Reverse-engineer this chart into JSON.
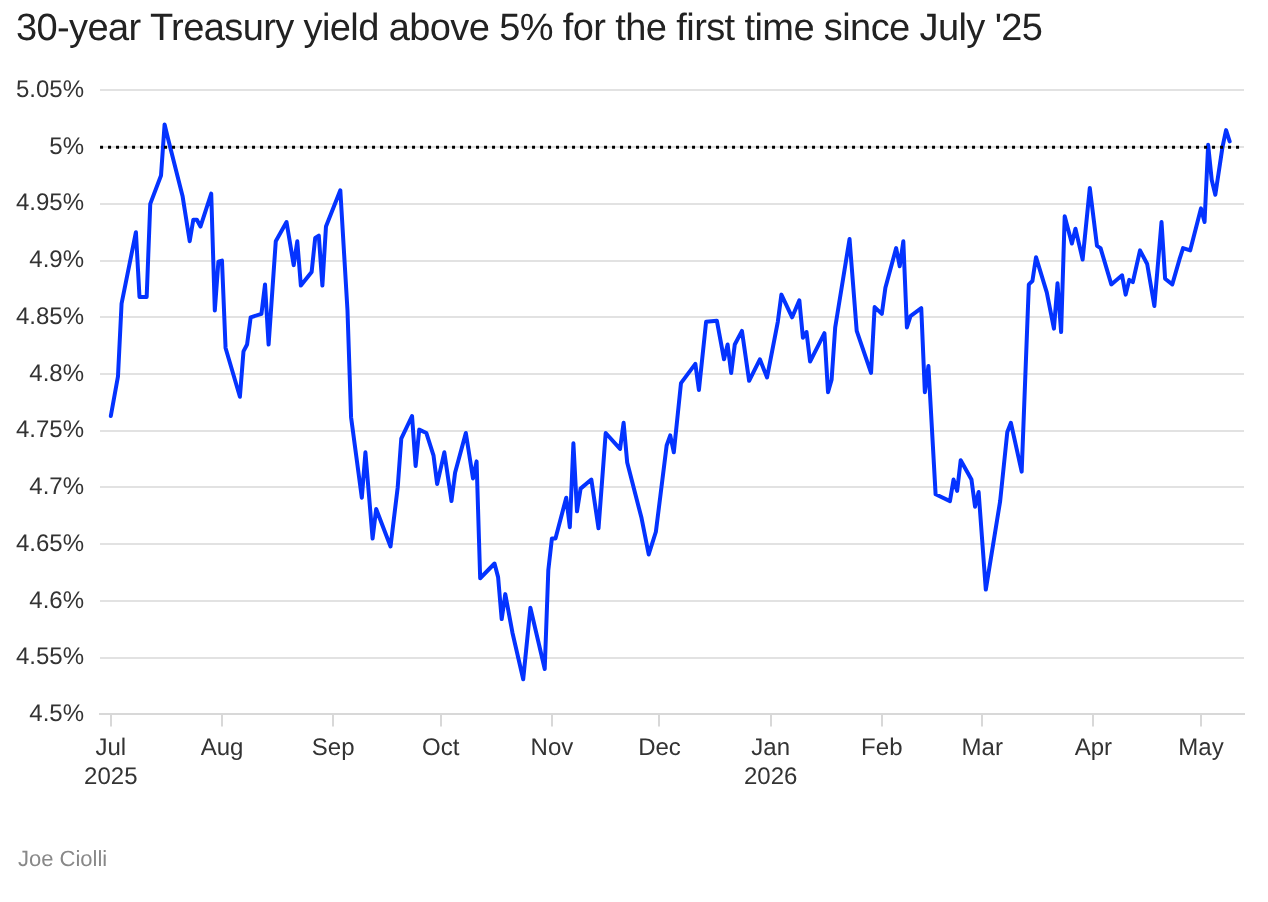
{
  "chart_data": {
    "type": "line",
    "title": "30-year Treasury yield above 5% for the first time since July '25",
    "x": [
      "2025-07-01",
      "2025-07-03",
      "2025-07-04",
      "2025-07-08",
      "2025-07-09",
      "2025-07-11",
      "2025-07-12",
      "2025-07-15",
      "2025-07-16",
      "2025-07-17",
      "2025-07-21",
      "2025-07-23",
      "2025-07-24",
      "2025-07-25",
      "2025-07-26",
      "2025-07-29",
      "2025-07-30",
      "2025-07-31",
      "2025-08-01",
      "2025-08-02",
      "2025-08-06",
      "2025-08-07",
      "2025-08-08",
      "2025-08-09",
      "2025-08-12",
      "2025-08-13",
      "2025-08-14",
      "2025-08-16",
      "2025-08-19",
      "2025-08-21",
      "2025-08-22",
      "2025-08-23",
      "2025-08-26",
      "2025-08-27",
      "2025-08-28",
      "2025-08-29",
      "2025-08-30",
      "2025-09-03",
      "2025-09-05",
      "2025-09-06",
      "2025-09-09",
      "2025-09-10",
      "2025-09-12",
      "2025-09-13",
      "2025-09-17",
      "2025-09-19",
      "2025-09-20",
      "2025-09-23",
      "2025-09-24",
      "2025-09-25",
      "2025-09-27",
      "2025-09-29",
      "2025-09-30",
      "2025-10-02",
      "2025-10-04",
      "2025-10-05",
      "2025-10-08",
      "2025-10-10",
      "2025-10-11",
      "2025-10-12",
      "2025-10-16",
      "2025-10-17",
      "2025-10-18",
      "2025-10-19",
      "2025-10-21",
      "2025-10-24",
      "2025-10-26",
      "2025-10-30",
      "2025-10-31",
      "2025-11-01",
      "2025-11-02",
      "2025-11-05",
      "2025-11-06",
      "2025-11-07",
      "2025-11-08",
      "2025-11-09",
      "2025-11-12",
      "2025-11-14",
      "2025-11-16",
      "2025-11-20",
      "2025-11-21",
      "2025-11-22",
      "2025-11-26",
      "2025-11-28",
      "2025-11-30",
      "2025-12-03",
      "2025-12-04",
      "2025-12-05",
      "2025-12-07",
      "2025-12-11",
      "2025-12-12",
      "2025-12-14",
      "2025-12-17",
      "2025-12-19",
      "2025-12-20",
      "2025-12-21",
      "2025-12-22",
      "2025-12-24",
      "2025-12-26",
      "2025-12-29",
      "2025-12-31",
      "2026-01-03",
      "2026-01-04",
      "2026-01-07",
      "2026-01-09",
      "2026-01-10",
      "2026-01-11",
      "2026-01-12",
      "2026-01-16",
      "2026-01-17",
      "2026-01-18",
      "2026-01-19",
      "2026-01-23",
      "2026-01-25",
      "2026-01-29",
      "2026-01-30",
      "2026-02-01",
      "2026-02-02",
      "2026-02-05",
      "2026-02-06",
      "2026-02-07",
      "2026-02-08",
      "2026-02-09",
      "2026-02-12",
      "2026-02-13",
      "2026-02-14",
      "2026-02-16",
      "2026-02-20",
      "2026-02-21",
      "2026-02-22",
      "2026-02-23",
      "2026-02-26",
      "2026-02-27",
      "2026-02-28",
      "2026-03-02",
      "2026-03-06",
      "2026-03-08",
      "2026-03-09",
      "2026-03-12",
      "2026-03-14",
      "2026-03-15",
      "2026-03-16",
      "2026-03-19",
      "2026-03-21",
      "2026-03-22",
      "2026-03-23",
      "2026-03-24",
      "2026-03-26",
      "2026-03-27",
      "2026-03-29",
      "2026-03-31",
      "2026-04-02",
      "2026-04-03",
      "2026-04-06",
      "2026-04-09",
      "2026-04-10",
      "2026-04-11",
      "2026-04-12",
      "2026-04-14",
      "2026-04-16",
      "2026-04-18",
      "2026-04-20",
      "2026-04-21",
      "2026-04-23",
      "2026-04-25",
      "2026-04-26",
      "2026-04-28",
      "2026-05-01",
      "2026-05-02",
      "2026-05-03",
      "2026-05-04",
      "2026-05-05",
      "2026-05-07",
      "2026-05-08",
      "2026-05-09"
    ],
    "series": [
      {
        "color": "#0433ff",
        "values": [
          4.763,
          4.798,
          4.862,
          4.925,
          4.868,
          4.868,
          4.95,
          4.975,
          5.02,
          5.007,
          4.957,
          4.917,
          4.936,
          4.936,
          4.93,
          4.959,
          4.856,
          4.899,
          4.9,
          4.823,
          4.78,
          4.82,
          4.826,
          4.85,
          4.853,
          4.879,
          4.826,
          4.917,
          4.934,
          4.896,
          4.917,
          4.878,
          4.89,
          4.92,
          4.922,
          4.878,
          4.93,
          4.962,
          4.856,
          4.762,
          4.691,
          4.731,
          4.655,
          4.681,
          4.648,
          4.7,
          4.743,
          4.763,
          4.719,
          4.751,
          4.748,
          4.728,
          4.703,
          4.731,
          4.688,
          4.713,
          4.748,
          4.708,
          4.723,
          4.62,
          4.633,
          4.621,
          4.584,
          4.606,
          4.572,
          4.531,
          4.594,
          4.54,
          4.627,
          4.655,
          4.655,
          4.691,
          4.665,
          4.739,
          4.679,
          4.699,
          4.707,
          4.664,
          4.748,
          4.734,
          4.757,
          4.722,
          4.673,
          4.641,
          4.661,
          4.737,
          4.746,
          4.731,
          4.792,
          4.809,
          4.786,
          4.846,
          4.847,
          4.813,
          4.826,
          4.801,
          4.826,
          4.838,
          4.794,
          4.813,
          4.797,
          4.846,
          4.87,
          4.85,
          4.865,
          4.832,
          4.837,
          4.811,
          4.836,
          4.784,
          4.795,
          4.841,
          4.919,
          4.838,
          4.801,
          4.859,
          4.853,
          4.876,
          4.911,
          4.895,
          4.917,
          4.841,
          4.851,
          4.858,
          4.784,
          4.807,
          4.694,
          4.688,
          4.707,
          4.697,
          4.724,
          4.707,
          4.683,
          4.696,
          4.61,
          4.688,
          4.749,
          4.757,
          4.714,
          4.879,
          4.882,
          4.903,
          4.872,
          4.84,
          4.88,
          4.837,
          4.939,
          4.915,
          4.928,
          4.901,
          4.964,
          4.913,
          4.911,
          4.879,
          4.887,
          4.87,
          4.883,
          4.881,
          4.909,
          4.897,
          4.86,
          4.934,
          4.884,
          4.879,
          4.901,
          4.911,
          4.909,
          4.946,
          4.934,
          5.002,
          4.971,
          4.958,
          5,
          5.015,
          5.005
        ]
      }
    ],
    "xlim": [
      "2025-06-28",
      "2026-05-13"
    ],
    "xticks": [
      {
        "value": "2025-07-01",
        "label": "Jul\n2025"
      },
      {
        "value": "2025-08-01",
        "label": "Aug"
      },
      {
        "value": "2025-09-01",
        "label": "Sep"
      },
      {
        "value": "2025-10-01",
        "label": "Oct"
      },
      {
        "value": "2025-11-01",
        "label": "Nov"
      },
      {
        "value": "2025-12-01",
        "label": "Dec"
      },
      {
        "value": "2026-01-01",
        "label": "Jan\n2026"
      },
      {
        "value": "2026-02-01",
        "label": "Feb"
      },
      {
        "value": "2026-03-01",
        "label": "Mar"
      },
      {
        "value": "2026-04-01",
        "label": "Apr"
      },
      {
        "value": "2026-05-01",
        "label": "May"
      }
    ],
    "ylim": [
      4.5,
      5.05
    ],
    "yticks": [
      {
        "value": 4.5,
        "label": "4.5%"
      },
      {
        "value": 4.55,
        "label": "4.55%"
      },
      {
        "value": 4.6,
        "label": "4.6%"
      },
      {
        "value": 4.65,
        "label": "4.65%"
      },
      {
        "value": 4.7,
        "label": "4.7%"
      },
      {
        "value": 4.75,
        "label": "4.75%"
      },
      {
        "value": 4.8,
        "label": "4.8%"
      },
      {
        "value": 4.85,
        "label": "4.85%"
      },
      {
        "value": 4.9,
        "label": "4.9%"
      },
      {
        "value": 4.95,
        "label": "4.95%"
      },
      {
        "value": 5,
        "label": "5%"
      },
      {
        "value": 5.05,
        "label": "5.05%"
      }
    ],
    "grid": "y",
    "legend": false,
    "marker": "none",
    "line_style": "solid",
    "ref_lines": [
      {
        "axis": "y",
        "value": 5,
        "color": "#000000",
        "line_style": "dotted"
      }
    ],
    "annotations": [
      "Joe Ciolli"
    ]
  }
}
